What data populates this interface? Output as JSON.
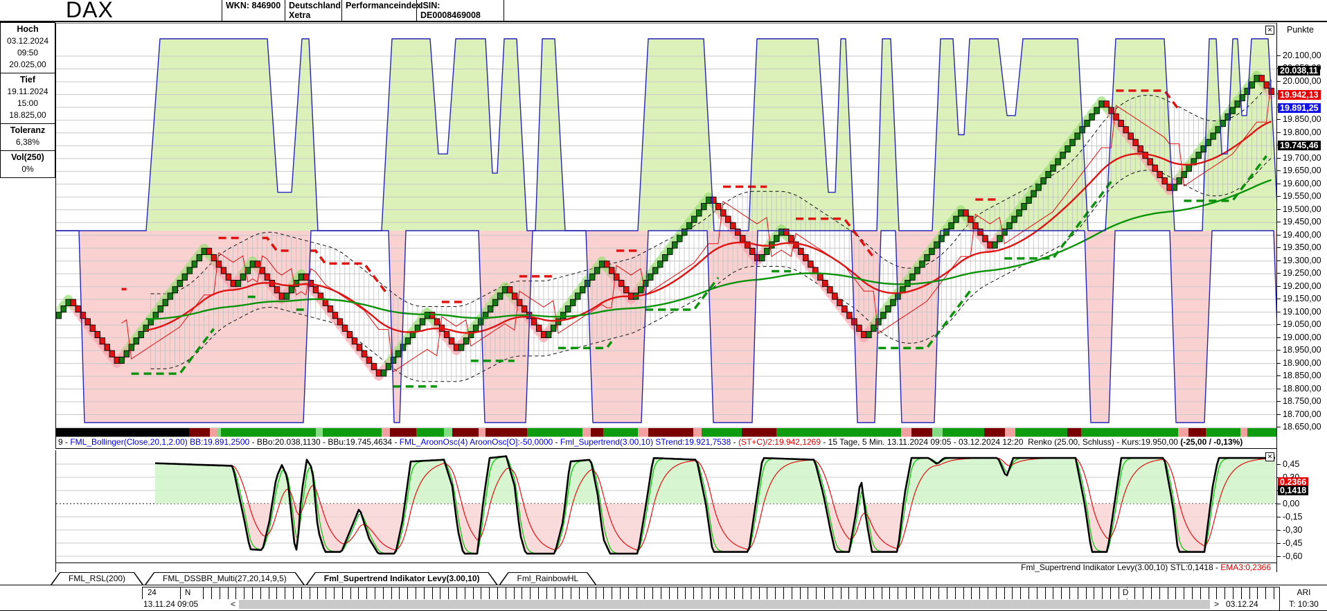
{
  "header": {
    "symbol": "DAX",
    "wkn": "WKN: 846900",
    "country": "Deutschland",
    "exchange": "Xetra",
    "index_type": "Performanceindex",
    "isin": "ISIN: DE0008469008"
  },
  "icons": {
    "close_glyph": "✕"
  },
  "info_panel": {
    "hoch": {
      "label": "Hoch",
      "date": "03.12.2024",
      "time": "09:50",
      "value": "20.025,00"
    },
    "tief": {
      "label": "Tief",
      "date": "19.11.2024",
      "time": "15:00",
      "value": "18.825,00"
    },
    "toleranz": {
      "label": "Toleranz",
      "value": "6,38%"
    },
    "vol": {
      "label": "Vol(250)",
      "value": "0%"
    }
  },
  "main_chart": {
    "unit_label": "Punkte"
  },
  "status_line": {
    "runs": [
      {
        "text": "9 - ",
        "color": "#000000",
        "bold": false
      },
      {
        "text": "FML_Bollinger(Close,20,1,2.00) BB:19.891,2500",
        "color": "#0000d0",
        "bold": false
      },
      {
        "text": " - BBo:20.038,1130 - BBu:19.745,4634 - ",
        "color": "#000000",
        "bold": false
      },
      {
        "text": "FML_AroonOsc(4) AroonOsc[O]:-50,0000",
        "color": "#0000d0",
        "bold": false
      },
      {
        "text": " - ",
        "color": "#000000",
        "bold": false
      },
      {
        "text": "Fml_Supertrend(3.00,10) STrend:19.921,7538",
        "color": "#0000d0",
        "bold": false
      },
      {
        "text": " - ",
        "color": "#000000",
        "bold": false
      },
      {
        "text": "(ST+C)/2:19.942,1269",
        "color": "#e00000",
        "bold": false
      },
      {
        "text": " - 15 Tage, 5 Min. 13.11.2024 09:05 - 03.12.2024 12:20  Renko (25.00, Schluss) - Kurs:19.950,00 ",
        "color": "#000000",
        "bold": false
      },
      {
        "text": "(-25,00 / -0,13%)",
        "color": "#000000",
        "bold": true
      }
    ]
  },
  "indicator_footer": {
    "runs": [
      {
        "text": "Fml_Supertrend Indikator Levy(3.00,10) STL:0,1418 - ",
        "color": "#000000",
        "bold": false
      },
      {
        "text": "EMA3:0,2366",
        "color": "#e00000",
        "bold": false
      }
    ]
  },
  "tabs": [
    {
      "label": "FML_RSL(200)",
      "active": false
    },
    {
      "label": "FML_DSSBR_Multi(27,20,14,9,5)",
      "active": false
    },
    {
      "label": "Fml_Supertrend Indikator Levy(3.00,10)",
      "active": true
    },
    {
      "label": "Fml_RainbowHL",
      "active": false
    }
  ],
  "timeline": {
    "label_24": "24",
    "label_n": "N",
    "label_d": "D",
    "start": "13.11.24 09:05",
    "end": "03.12.24 12:20",
    "left_arrow": "<",
    "right_arrow": ">",
    "corner_top": "ARI",
    "corner_bottom": "T: 10:30"
  },
  "chart_data": [
    {
      "type": "renko",
      "title": "DAX 15 Tage, 5 Min. Renko (25.00, Schluss)",
      "ylabel": "Punkte",
      "ylim": [
        18650,
        20100
      ],
      "ytick_step": 50,
      "grid": true,
      "yticks_formatted": [
        "20.100,00",
        "20.050,00",
        "20.000,00",
        "19.950,00",
        "19.900,00",
        "19.850,00",
        "19.800,00",
        "19.750,00",
        "19.700,00",
        "19.650,00",
        "19.600,00",
        "19.550,00",
        "19.500,00",
        "19.450,00",
        "19.400,00",
        "19.350,00",
        "19.300,00",
        "19.250,00",
        "19.200,00",
        "19.150,00",
        "19.100,00",
        "19.050,00",
        "19.000,00",
        "18.950,00",
        "18.900,00",
        "18.850,00",
        "18.800,00",
        "18.750,00",
        "18.700,00",
        "18.650,00"
      ],
      "brick_size": 25,
      "renko_waypoints": [
        19075,
        19150,
        18900,
        19350,
        19200,
        19300,
        19150,
        19250,
        18850,
        19100,
        18950,
        19200,
        19000,
        19300,
        19150,
        19550,
        19300,
        19425,
        19000,
        19500,
        19350,
        19925,
        19575,
        20025,
        19950
      ],
      "current_values": {
        "bb_mid": 19891.25,
        "bb_upper": 20038.113,
        "bb_lower": 19745.4634,
        "aroon_osc": -50.0,
        "strend": 19921.7538,
        "st_plus_c_half": 19942.1269,
        "kurs": 19950.0,
        "change": "-25,00 / -0,13%"
      },
      "price_markers": [
        {
          "label": "20.038,11",
          "value": 20038.113,
          "bg": "#000000",
          "fg": "#ffffff"
        },
        {
          "label": "19.942,13",
          "value": 19942.1269,
          "bg": "#e80000",
          "fg": "#ffffff"
        },
        {
          "label": "19.891,25",
          "value": 19891.25,
          "bg": "#1414e8",
          "fg": "#ffffff"
        },
        {
          "label": "19.745,46",
          "value": 19745.4634,
          "bg": "#000000",
          "fg": "#ffffff"
        }
      ],
      "aroon_up": [
        [
          80,
          0
        ],
        [
          210,
          0
        ],
        [
          230,
          100
        ],
        [
          385,
          100
        ],
        [
          400,
          20
        ],
        [
          420,
          20
        ],
        [
          435,
          100
        ],
        [
          445,
          100
        ],
        [
          458,
          0
        ],
        [
          550,
          0
        ],
        [
          565,
          100
        ],
        [
          620,
          100
        ],
        [
          632,
          40
        ],
        [
          645,
          40
        ],
        [
          657,
          100
        ],
        [
          700,
          100
        ],
        [
          710,
          30
        ],
        [
          717,
          30
        ],
        [
          727,
          100
        ],
        [
          745,
          100
        ],
        [
          760,
          0
        ],
        [
          772,
          0
        ],
        [
          782,
          100
        ],
        [
          800,
          100
        ],
        [
          815,
          0
        ],
        [
          920,
          0
        ],
        [
          935,
          100
        ],
        [
          1015,
          100
        ],
        [
          1030,
          0
        ],
        [
          1080,
          0
        ],
        [
          1092,
          100
        ],
        [
          1180,
          100
        ],
        [
          1195,
          20
        ],
        [
          1205,
          20
        ],
        [
          1213,
          100
        ],
        [
          1220,
          100
        ],
        [
          1232,
          0
        ],
        [
          1265,
          0
        ],
        [
          1273,
          100
        ],
        [
          1285,
          100
        ],
        [
          1297,
          0
        ],
        [
          1345,
          0
        ],
        [
          1357,
          100
        ],
        [
          1375,
          100
        ],
        [
          1383,
          50
        ],
        [
          1391,
          50
        ],
        [
          1399,
          100
        ],
        [
          1440,
          100
        ],
        [
          1453,
          60
        ],
        [
          1465,
          60
        ],
        [
          1476,
          100
        ],
        [
          1555,
          100
        ],
        [
          1570,
          0
        ],
        [
          1595,
          0
        ],
        [
          1610,
          100
        ],
        [
          1680,
          100
        ],
        [
          1695,
          0
        ],
        [
          1735,
          0
        ],
        [
          1745,
          100
        ],
        [
          1755,
          100
        ],
        [
          1763,
          40
        ],
        [
          1771,
          40
        ],
        [
          1779,
          100
        ],
        [
          1786,
          100
        ],
        [
          1792,
          60
        ],
        [
          1799,
          60
        ],
        [
          1806,
          100
        ],
        [
          1830,
          100
        ],
        [
          1845,
          0
        ],
        [
          1860,
          0
        ]
      ],
      "aroon_down": [
        [
          80,
          0
        ],
        [
          113,
          0
        ],
        [
          121,
          -100
        ],
        [
          437,
          -100
        ],
        [
          448,
          0
        ],
        [
          560,
          0
        ],
        [
          568,
          -100
        ],
        [
          576,
          -100
        ],
        [
          585,
          0
        ],
        [
          690,
          0
        ],
        [
          699,
          -100
        ],
        [
          758,
          -100
        ],
        [
          768,
          0
        ],
        [
          845,
          0
        ],
        [
          855,
          -100
        ],
        [
          925,
          -100
        ],
        [
          935,
          0
        ],
        [
          1020,
          0
        ],
        [
          1029,
          -100
        ],
        [
          1085,
          -100
        ],
        [
          1093,
          0
        ],
        [
          1228,
          0
        ],
        [
          1237,
          -100
        ],
        [
          1262,
          -100
        ],
        [
          1271,
          0
        ],
        [
          1292,
          0
        ],
        [
          1301,
          -100
        ],
        [
          1348,
          -100
        ],
        [
          1357,
          0
        ],
        [
          1565,
          0
        ],
        [
          1574,
          -100
        ],
        [
          1600,
          -100
        ],
        [
          1609,
          0
        ],
        [
          1688,
          0
        ],
        [
          1697,
          -100
        ],
        [
          1738,
          -100
        ],
        [
          1749,
          0
        ],
        [
          1838,
          0
        ],
        [
          1848,
          -100
        ],
        [
          1860,
          -100
        ]
      ],
      "ribbon": [
        [
          80,
          272,
          "#000000"
        ],
        [
          272,
          302,
          "#7a0000"
        ],
        [
          302,
          312,
          "#f2a0a0"
        ],
        [
          312,
          318,
          "#84dc84"
        ],
        [
          318,
          455,
          "#0f9b0f"
        ],
        [
          455,
          465,
          "#84dc84"
        ],
        [
          465,
          550,
          "#0f9b0f"
        ],
        [
          550,
          562,
          "#f2a0a0"
        ],
        [
          562,
          600,
          "#7a0000"
        ],
        [
          600,
          640,
          "#0f9b0f"
        ],
        [
          640,
          652,
          "#84dc84"
        ],
        [
          652,
          690,
          "#7a0000"
        ],
        [
          690,
          700,
          "#f2a0a0"
        ],
        [
          700,
          760,
          "#7a0000"
        ],
        [
          760,
          840,
          "#0f9b0f"
        ],
        [
          840,
          852,
          "#f2a0a0"
        ],
        [
          852,
          870,
          "#7a0000"
        ],
        [
          870,
          920,
          "#0f9b0f"
        ],
        [
          920,
          935,
          "#f2a0a0"
        ],
        [
          935,
          1000,
          "#7a0000"
        ],
        [
          1000,
          1012,
          "#f2a0a0"
        ],
        [
          1012,
          1070,
          "#0f9b0f"
        ],
        [
          1070,
          1120,
          "#7a0000"
        ],
        [
          1120,
          1300,
          "#0f9b0f"
        ],
        [
          1300,
          1315,
          "#f2a0a0"
        ],
        [
          1315,
          1345,
          "#7a0000"
        ],
        [
          1345,
          1360,
          "#84dc84"
        ],
        [
          1360,
          1420,
          "#0f9b0f"
        ],
        [
          1420,
          1450,
          "#7a0000"
        ],
        [
          1450,
          1465,
          "#f2a0a0"
        ],
        [
          1465,
          1540,
          "#0f9b0f"
        ],
        [
          1540,
          1560,
          "#7a0000"
        ],
        [
          1560,
          1700,
          "#0f9b0f"
        ],
        [
          1700,
          1715,
          "#f2a0a0"
        ],
        [
          1715,
          1740,
          "#7a0000"
        ],
        [
          1740,
          1790,
          "#0f9b0f"
        ],
        [
          1790,
          1800,
          "#f2a0a0"
        ],
        [
          1800,
          1843,
          "#0f9b0f"
        ]
      ]
    },
    {
      "type": "line",
      "title": "Fml_Supertrend Indikator Levy(3.00,10)",
      "ylim": [
        -0.68,
        0.58
      ],
      "grid": true,
      "yticks": [
        0.45,
        0.3,
        0.15,
        0.0,
        -0.15,
        -0.3,
        -0.45,
        -0.6
      ],
      "yticks_formatted": [
        "0,45",
        "0,30",
        "0,15",
        "0,00",
        "-0,15",
        "-0,30",
        "-0,45",
        "-0,60"
      ],
      "series": [
        {
          "name": "STL",
          "current": 0.1418,
          "color": "#000000"
        },
        {
          "name": "EMA3",
          "current": 0.2366,
          "color": "#e00000"
        }
      ],
      "markers": [
        {
          "label": "0,2366",
          "value": 0.2366,
          "bg": "#e80000",
          "fg": "#ffffff"
        },
        {
          "label": "0,1418",
          "value": 0.1418,
          "bg": "#000000",
          "fg": "#ffffff"
        }
      ],
      "stl_waypoints": [
        [
          223,
          0.46
        ],
        [
          335,
          0.43
        ],
        [
          352,
          -0.2
        ],
        [
          360,
          -0.52
        ],
        [
          378,
          -0.53
        ],
        [
          388,
          -0.2
        ],
        [
          398,
          0.3
        ],
        [
          406,
          0.44
        ],
        [
          414,
          0.3
        ],
        [
          424,
          -0.45
        ],
        [
          428,
          -0.55
        ],
        [
          434,
          0.1
        ],
        [
          442,
          0.5
        ],
        [
          450,
          0.4
        ],
        [
          458,
          -0.3
        ],
        [
          468,
          -0.55
        ],
        [
          492,
          -0.55
        ],
        [
          505,
          -0.3
        ],
        [
          518,
          -0.05
        ],
        [
          532,
          -0.4
        ],
        [
          545,
          -0.57
        ],
        [
          570,
          -0.57
        ],
        [
          580,
          -0.2
        ],
        [
          592,
          0.48
        ],
        [
          640,
          0.5
        ],
        [
          652,
          0.2
        ],
        [
          660,
          -0.3
        ],
        [
          668,
          -0.57
        ],
        [
          688,
          -0.57
        ],
        [
          698,
          0.1
        ],
        [
          706,
          0.52
        ],
        [
          730,
          0.54
        ],
        [
          742,
          0.2
        ],
        [
          750,
          -0.35
        ],
        [
          758,
          -0.57
        ],
        [
          800,
          -0.57
        ],
        [
          812,
          -0.2
        ],
        [
          822,
          0.48
        ],
        [
          852,
          0.5
        ],
        [
          862,
          0.1
        ],
        [
          870,
          -0.4
        ],
        [
          880,
          -0.57
        ],
        [
          920,
          -0.57
        ],
        [
          932,
          0
        ],
        [
          942,
          0.52
        ],
        [
          1005,
          0.5
        ],
        [
          1018,
          0
        ],
        [
          1028,
          -0.55
        ],
        [
          1080,
          -0.55
        ],
        [
          1092,
          0.1
        ],
        [
          1100,
          0.52
        ],
        [
          1175,
          0.5
        ],
        [
          1188,
          0.1
        ],
        [
          1198,
          -0.3
        ],
        [
          1205,
          -0.55
        ],
        [
          1225,
          -0.55
        ],
        [
          1235,
          -0.1
        ],
        [
          1242,
          0.3
        ],
        [
          1250,
          -0.2
        ],
        [
          1258,
          -0.55
        ],
        [
          1295,
          -0.55
        ],
        [
          1305,
          0.1
        ],
        [
          1315,
          0.52
        ],
        [
          1340,
          0.52
        ],
        [
          1352,
          0.45
        ],
        [
          1362,
          0.52
        ],
        [
          1440,
          0.52
        ],
        [
          1452,
          0.3
        ],
        [
          1462,
          0.52
        ],
        [
          1552,
          0.52
        ],
        [
          1565,
          0
        ],
        [
          1575,
          -0.55
        ],
        [
          1598,
          -0.55
        ],
        [
          1610,
          0.1
        ],
        [
          1618,
          0.52
        ],
        [
          1680,
          0.52
        ],
        [
          1692,
          0
        ],
        [
          1700,
          -0.55
        ],
        [
          1738,
          -0.55
        ],
        [
          1750,
          0.2
        ],
        [
          1758,
          0.52
        ],
        [
          1840,
          0.52
        ],
        [
          1852,
          0.2
        ],
        [
          1862,
          0.14
        ]
      ]
    }
  ]
}
